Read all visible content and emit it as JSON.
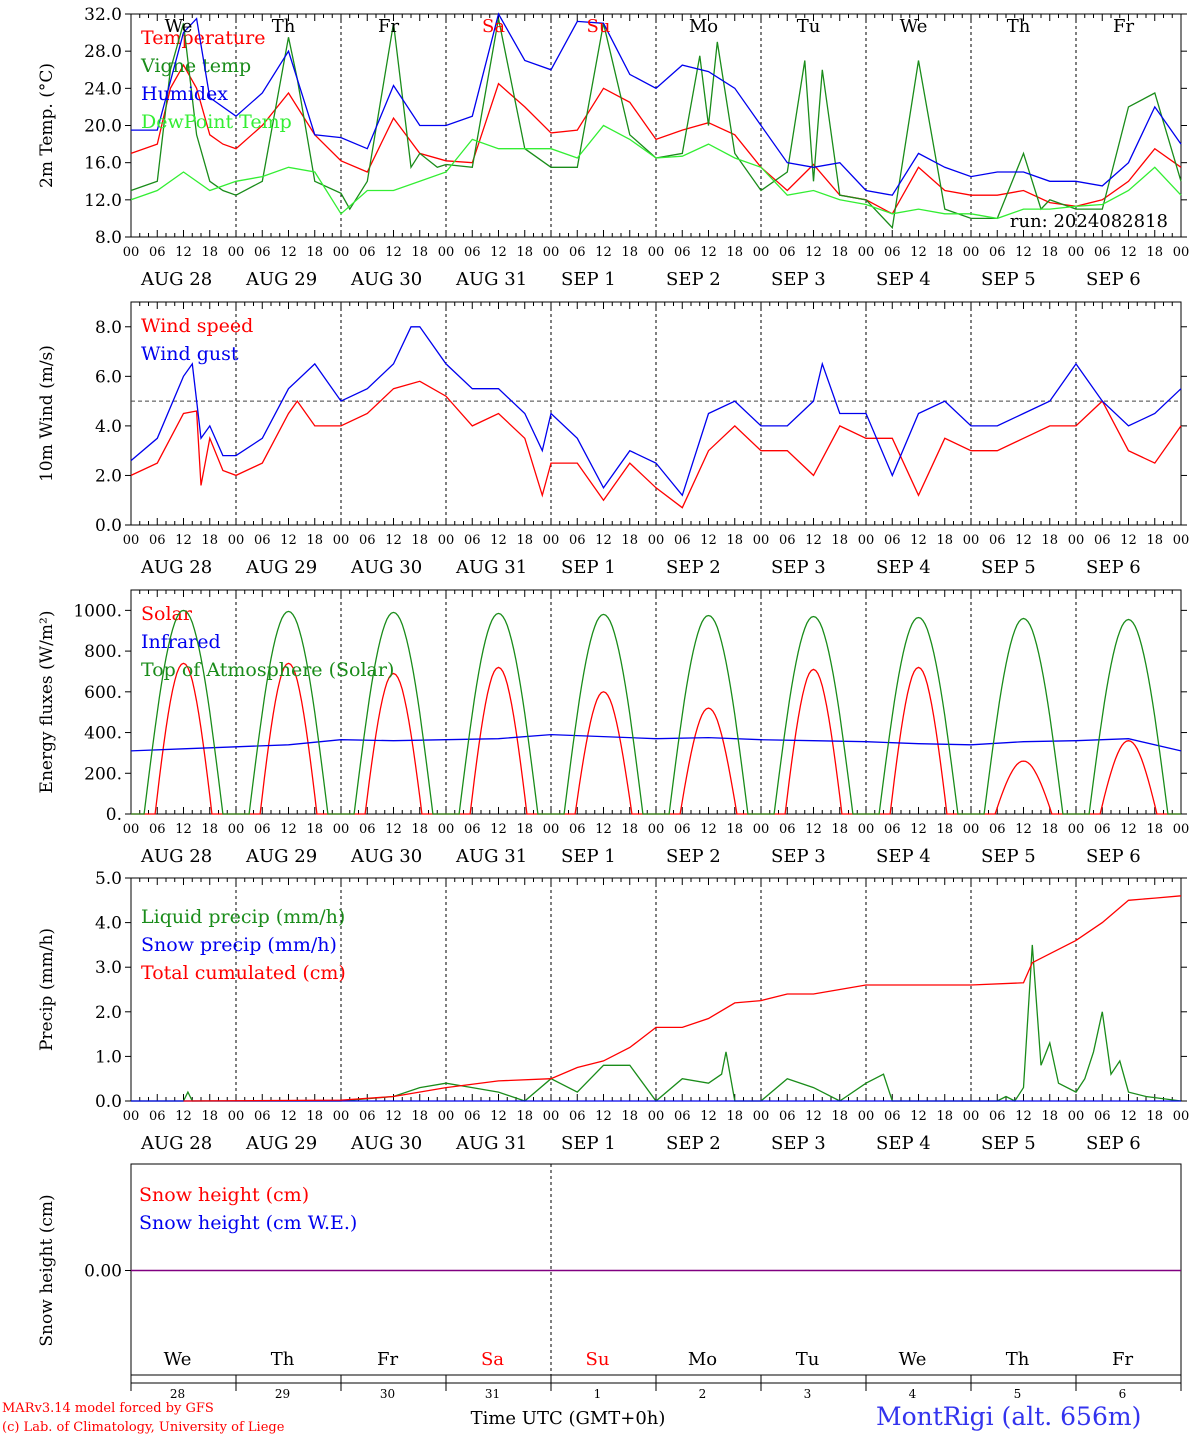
{
  "meta": {
    "run_label": "run: 2024082818",
    "station": "MontRigi (alt. 656m)",
    "credit_line1": "MARv3.14 model forced by GFS",
    "credit_line2": "(c) Lab. of Climatology, University of Liege",
    "xlabel": "Time UTC (GMT+0h)",
    "hour_ticks": [
      "00",
      "06",
      "12",
      "18"
    ],
    "dates": [
      "AUG 28",
      "AUG 29",
      "AUG 30",
      "AUG 31",
      "SEP  1",
      "SEP  2",
      "SEP  3",
      "SEP  4",
      "SEP  5",
      "SEP  6"
    ],
    "weekdays": [
      "We",
      "Th",
      "Fr",
      "Sa",
      "Su",
      "Mo",
      "Tu",
      "We",
      "Th",
      "Fr"
    ],
    "weekend_days": [
      3,
      4
    ],
    "day_numbers": [
      "28",
      "29",
      "30",
      "31",
      "1",
      "2",
      "3",
      "4",
      "5",
      "6"
    ]
  },
  "colors": {
    "red": "#ff0000",
    "green": "#1a8c1a",
    "blue": "#0000ee",
    "lightgreen": "#33ee33",
    "purple": "#800080"
  },
  "chart_data": [
    {
      "type": "line",
      "ylabel": "2m Temp. (°C)",
      "ylim": [
        8,
        32
      ],
      "yticks": [
        "8.0",
        "12.0",
        "16.0",
        "20.0",
        "24.0",
        "28.0",
        "32.0"
      ],
      "x_unit": "hours since AUG 28 00 UTC",
      "series": [
        {
          "name": "Temperature",
          "color": "red",
          "x": [
            0,
            6,
            9,
            12,
            15,
            18,
            21,
            24,
            30,
            36,
            42,
            48,
            54,
            60,
            66,
            72,
            78,
            84,
            90,
            96,
            102,
            108,
            114,
            120,
            126,
            132,
            138,
            144,
            150,
            156,
            162,
            168,
            174,
            180,
            186,
            192,
            198,
            204,
            210,
            216,
            222,
            228,
            234,
            240
          ],
          "y": [
            17,
            18,
            24,
            26.5,
            24,
            19,
            18,
            17.5,
            20,
            23.5,
            19,
            16.2,
            15,
            20.8,
            17,
            16.2,
            16,
            24.5,
            22,
            19.2,
            19.5,
            24,
            22.5,
            18.5,
            19.5,
            20.3,
            19,
            15.5,
            13,
            15.8,
            12.5,
            12,
            10.5,
            15.5,
            13,
            12.5,
            12.5,
            13,
            11.7,
            11.3,
            12,
            14,
            17.5,
            15.5
          ]
        },
        {
          "name": "Vigne temp",
          "color": "green",
          "x": [
            0,
            6,
            9,
            12,
            15,
            18,
            21,
            24,
            30,
            36,
            38,
            42,
            48,
            50,
            54,
            60,
            64,
            66,
            70,
            72,
            78,
            84,
            90,
            96,
            102,
            108,
            114,
            120,
            126,
            130,
            132,
            134,
            138,
            144,
            150,
            154,
            156,
            158,
            162,
            168,
            174,
            180,
            186,
            192,
            198,
            204,
            208,
            210,
            216,
            222,
            228,
            234,
            240
          ],
          "y": [
            13,
            14,
            26,
            31,
            19,
            14,
            13,
            12.5,
            14,
            29.5,
            25,
            14,
            12.7,
            11,
            14,
            31,
            15.5,
            17,
            15.5,
            15.8,
            15.5,
            31.5,
            17.5,
            15.5,
            15.5,
            31,
            19,
            16.5,
            17,
            27.5,
            20,
            29,
            17,
            13,
            15,
            27,
            14,
            26,
            12.5,
            12,
            9,
            27,
            11,
            10,
            10,
            17,
            11,
            12,
            11,
            11,
            22,
            23.5,
            14
          ]
        },
        {
          "name": "Humidex",
          "color": "blue",
          "x": [
            0,
            6,
            12,
            15,
            18,
            24,
            30,
            36,
            42,
            48,
            54,
            60,
            66,
            72,
            78,
            84,
            90,
            96,
            102,
            108,
            114,
            120,
            126,
            132,
            138,
            144,
            150,
            156,
            162,
            168,
            174,
            180,
            186,
            192,
            198,
            204,
            210,
            216,
            222,
            228,
            234,
            240
          ],
          "y": [
            19.5,
            19.5,
            30,
            31.5,
            23,
            21,
            23.5,
            28,
            19,
            18.7,
            17.5,
            24.3,
            20,
            20,
            21,
            32,
            27,
            26,
            31.2,
            31,
            25.5,
            24,
            26.5,
            25.8,
            24,
            20,
            16,
            15.5,
            16,
            13,
            12.5,
            17,
            15.5,
            14.5,
            15,
            15,
            14,
            14,
            13.5,
            16,
            22,
            18
          ]
        },
        {
          "name": "DewPoint Temp",
          "color": "lightgreen",
          "x": [
            0,
            6,
            12,
            18,
            24,
            30,
            36,
            42,
            48,
            54,
            60,
            66,
            72,
            78,
            84,
            90,
            96,
            102,
            108,
            114,
            120,
            126,
            132,
            138,
            144,
            150,
            156,
            162,
            168,
            174,
            180,
            186,
            192,
            198,
            204,
            210,
            216,
            222,
            228,
            234,
            240
          ],
          "y": [
            12,
            13,
            15,
            13,
            14,
            14.5,
            15.5,
            15,
            10.5,
            13,
            13,
            14,
            15,
            18.5,
            17.5,
            17.5,
            17.5,
            16.5,
            20,
            18.5,
            16.5,
            16.7,
            18,
            16.5,
            15.5,
            12.5,
            13,
            12,
            11.5,
            10.5,
            11,
            10.5,
            10.5,
            10,
            11,
            11,
            11.3,
            11.5,
            13,
            15.5,
            12.5
          ]
        }
      ]
    },
    {
      "type": "line",
      "ylabel": "10m Wind (m/s)",
      "ylim": [
        0,
        9
      ],
      "yticks": [
        "0.0",
        "2.0",
        "4.0",
        "6.0",
        "8.0"
      ],
      "reference_line": 5,
      "series": [
        {
          "name": "Wind speed",
          "color": "red",
          "x": [
            0,
            6,
            12,
            15,
            16,
            18,
            21,
            24,
            30,
            36,
            38,
            42,
            48,
            54,
            60,
            66,
            72,
            78,
            84,
            90,
            94,
            96,
            102,
            108,
            114,
            120,
            126,
            132,
            138,
            144,
            150,
            156,
            162,
            168,
            174,
            180,
            186,
            192,
            198,
            204,
            210,
            216,
            222,
            228,
            234,
            240
          ],
          "y": [
            2,
            2.5,
            4.5,
            4.6,
            1.6,
            3.5,
            2.2,
            2,
            2.5,
            4.5,
            5,
            4,
            4,
            4.5,
            5.5,
            5.8,
            5.2,
            4,
            4.5,
            3.5,
            1.2,
            2.5,
            2.5,
            1,
            2.5,
            1.5,
            0.7,
            3,
            4,
            3,
            3,
            2,
            4,
            3.5,
            3.5,
            1.2,
            3.5,
            3,
            3,
            3.5,
            4,
            4,
            5,
            3,
            2.5,
            4
          ]
        },
        {
          "name": "Wind gust",
          "color": "blue",
          "x": [
            0,
            6,
            12,
            14,
            16,
            18,
            21,
            24,
            30,
            36,
            42,
            48,
            54,
            60,
            64,
            66,
            72,
            78,
            84,
            90,
            94,
            96,
            102,
            108,
            114,
            120,
            126,
            132,
            138,
            144,
            150,
            156,
            158,
            162,
            168,
            174,
            180,
            186,
            192,
            198,
            204,
            210,
            216,
            222,
            228,
            234,
            240
          ],
          "y": [
            2.6,
            3.5,
            6,
            6.5,
            3.5,
            4,
            2.8,
            2.8,
            3.5,
            5.5,
            6.5,
            5,
            5.5,
            6.5,
            8,
            8,
            6.5,
            5.5,
            5.5,
            4.5,
            3,
            4.5,
            3.5,
            1.5,
            3,
            2.5,
            1.2,
            4.5,
            5,
            4,
            4,
            5,
            6.5,
            4.5,
            4.5,
            2,
            4.5,
            5,
            4,
            4,
            4.5,
            5,
            6.5,
            5,
            4,
            4.5,
            5.5
          ]
        }
      ]
    },
    {
      "type": "line",
      "ylabel": "Energy fluxes (W/m²)",
      "ylim": [
        0,
        1100
      ],
      "yticks": [
        "0.",
        "200.",
        "400.",
        "600.",
        "800.",
        "1000."
      ],
      "series": [
        {
          "name": "Solar",
          "color": "red",
          "peaks": [
            [
              12,
              740
            ],
            [
              36,
              740
            ],
            [
              60,
              690
            ],
            [
              84,
              720
            ],
            [
              108,
              600
            ],
            [
              132,
              520
            ],
            [
              156,
              710
            ],
            [
              180,
              720
            ],
            [
              204,
              260
            ],
            [
              228,
              360
            ]
          ]
        },
        {
          "name": "Infrared",
          "color": "blue",
          "x": [
            0,
            12,
            24,
            36,
            48,
            60,
            72,
            84,
            96,
            108,
            120,
            132,
            144,
            156,
            168,
            180,
            192,
            204,
            216,
            228,
            240
          ],
          "y": [
            310,
            320,
            330,
            340,
            365,
            360,
            365,
            370,
            390,
            380,
            370,
            375,
            365,
            360,
            355,
            345,
            340,
            355,
            360,
            370,
            310
          ]
        },
        {
          "name": "Top of Atmosphere (Solar)",
          "color": "green",
          "peaks": [
            [
              12,
              1000
            ],
            [
              36,
              995
            ],
            [
              60,
              990
            ],
            [
              84,
              985
            ],
            [
              108,
              980
            ],
            [
              132,
              975
            ],
            [
              156,
              970
            ],
            [
              180,
              965
            ],
            [
              204,
              960
            ],
            [
              228,
              955
            ]
          ]
        }
      ]
    },
    {
      "type": "line",
      "ylabel": "Precip (mm/h)",
      "ylim": [
        0,
        5
      ],
      "yticks": [
        "0.0",
        "1.0",
        "2.0",
        "3.0",
        "4.0",
        "5.0"
      ],
      "series": [
        {
          "name": "Liquid precip (mm/h)",
          "color": "green",
          "x": [
            0,
            12,
            13,
            14,
            24,
            48,
            60,
            66,
            72,
            78,
            84,
            90,
            96,
            102,
            108,
            114,
            120,
            126,
            132,
            135,
            136,
            138,
            144,
            150,
            156,
            162,
            168,
            172,
            174,
            180,
            192,
            198,
            200,
            202,
            204,
            206,
            208,
            210,
            212,
            216,
            218,
            220,
            222,
            224,
            226,
            228,
            232,
            240
          ],
          "y": [
            0,
            0,
            0.2,
            0,
            0,
            0,
            0.1,
            0.3,
            0.4,
            0.3,
            0.2,
            0,
            0.5,
            0.2,
            0.8,
            0.8,
            0,
            0.5,
            0.4,
            0.6,
            1.1,
            0,
            0,
            0.5,
            0.3,
            0,
            0.4,
            0.6,
            0,
            0,
            0,
            0,
            0.1,
            0,
            0.3,
            3.5,
            0.8,
            1.3,
            0.4,
            0.2,
            0.5,
            1.1,
            2,
            0.6,
            0.9,
            0.2,
            0.1,
            0
          ]
        },
        {
          "name": "Snow precip (mm/h)",
          "color": "blue",
          "x": [
            0,
            240
          ],
          "y": [
            0,
            0
          ]
        },
        {
          "name": "Total cumulated (cm)",
          "color": "red",
          "x": [
            12,
            48,
            60,
            72,
            84,
            96,
            102,
            108,
            114,
            120,
            126,
            132,
            138,
            144,
            150,
            156,
            162,
            168,
            192,
            204,
            206,
            216,
            222,
            228,
            234,
            240
          ],
          "y": [
            0,
            0.02,
            0.1,
            0.3,
            0.45,
            0.5,
            0.75,
            0.9,
            1.2,
            1.65,
            1.65,
            1.85,
            2.2,
            2.25,
            2.4,
            2.4,
            2.5,
            2.6,
            2.6,
            2.65,
            3.1,
            3.6,
            4,
            4.5,
            4.55,
            4.6
          ]
        }
      ]
    },
    {
      "type": "line",
      "ylabel": "Snow height (cm)",
      "ytick": "0.00",
      "series": [
        {
          "name": "Snow height (cm)",
          "color": "red",
          "x": [
            0,
            240
          ],
          "y": [
            0,
            0
          ]
        },
        {
          "name": "Snow height (cm W.E.)",
          "color": "blue",
          "x": [
            0,
            240
          ],
          "y": [
            0,
            0
          ]
        }
      ]
    }
  ]
}
